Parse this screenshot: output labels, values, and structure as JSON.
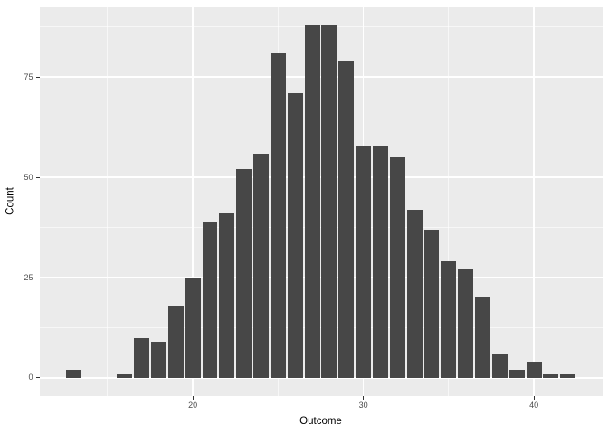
{
  "chart_data": {
    "type": "bar",
    "subtype": "histogram",
    "title": "",
    "xlabel": "Outcome",
    "ylabel": "Count",
    "x": [
      13,
      16,
      17,
      18,
      19,
      20,
      21,
      22,
      23,
      24,
      25,
      26,
      27,
      28,
      29,
      30,
      31,
      32,
      33,
      34,
      35,
      36,
      37,
      38,
      39,
      40,
      41,
      42
    ],
    "values": [
      2,
      1,
      10,
      9,
      18,
      25,
      39,
      41,
      52,
      56,
      81,
      71,
      88,
      88,
      79,
      58,
      58,
      55,
      42,
      37,
      29,
      27,
      20,
      6,
      2,
      4,
      1,
      1
    ],
    "total_count": 1000,
    "bar_width_units": 0.9,
    "xlim": [
      11,
      44
    ],
    "ylim": [
      -4.4,
      92.4
    ],
    "x_major_ticks": [
      20,
      30,
      40
    ],
    "y_major_ticks": [
      0,
      25,
      50,
      75
    ],
    "x_minor_gridlines": [
      15,
      25,
      35
    ],
    "y_minor_gridlines": [
      12.5,
      37.5,
      62.5,
      87.5
    ],
    "grid": "on",
    "legend": "none",
    "colors": {
      "bar_fill": "#474747",
      "panel_background": "#EBEBEB",
      "major_gridline": "#FFFFFF",
      "minor_gridline": "#FFFFFF",
      "tick_label": "#4D4D4D",
      "tick_mark": "#333333",
      "axis_title": "#000000",
      "figure_background": "#FFFFFF"
    }
  }
}
